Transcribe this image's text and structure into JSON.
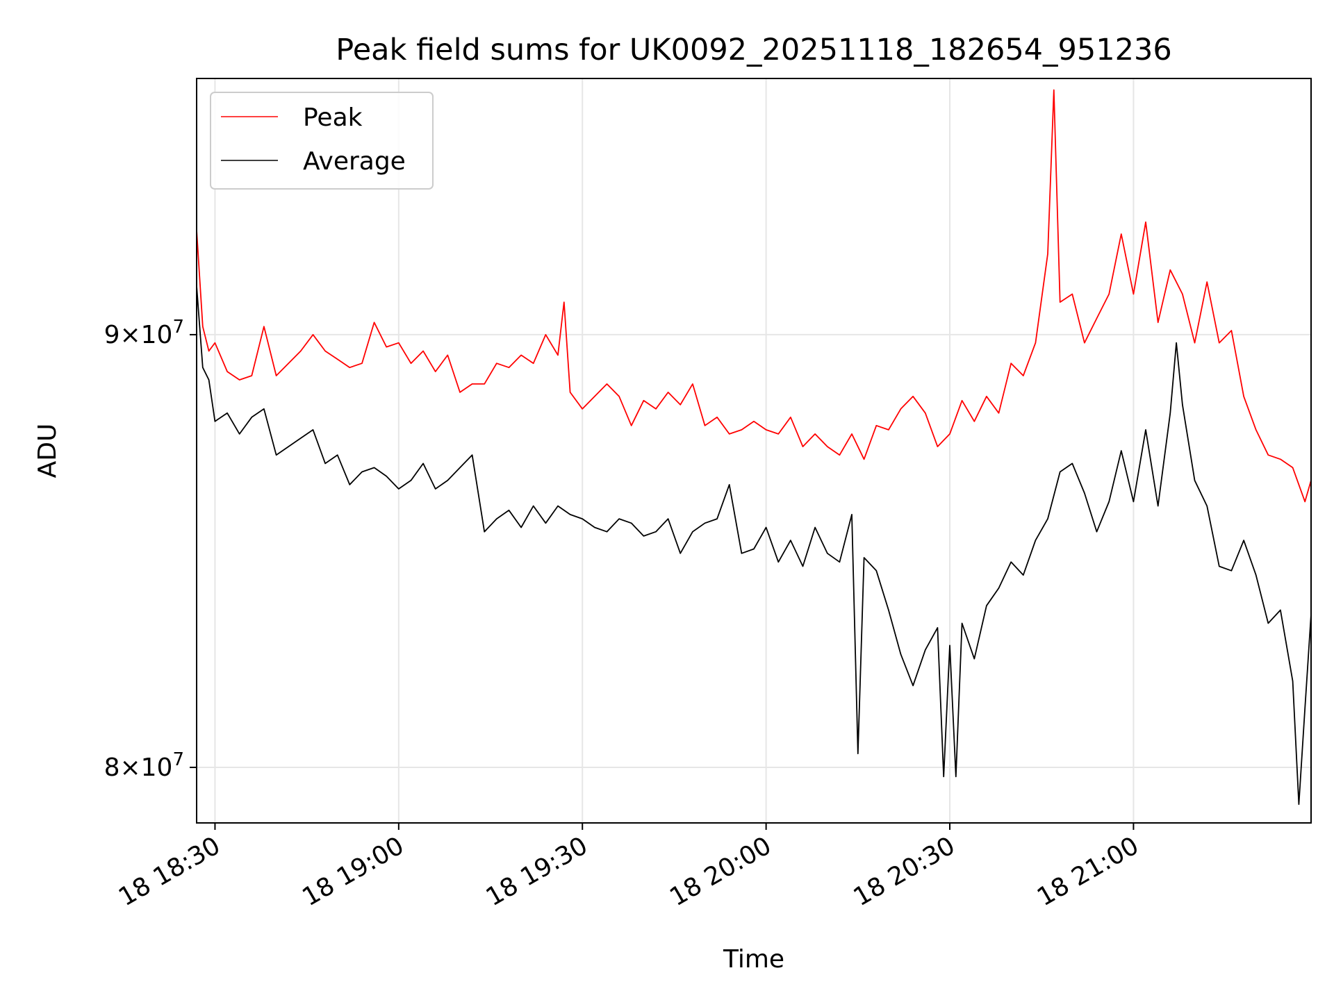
{
  "chart_data": {
    "type": "line",
    "title": "Peak field sums for UK0092_20251118_182654_951236",
    "xlabel": "Time",
    "ylabel": "ADU",
    "x_start": "18 18:27",
    "x_end": "18 21:29",
    "x_unit": "time of day (day 18)",
    "ylim": [
      78800000,
      96500000
    ],
    "y_scale": "log",
    "grid": true,
    "legend_position": "top-left",
    "x_ticks": [
      "18 18:30",
      "18 19:00",
      "18 19:30",
      "18 20:00",
      "18 20:30",
      "18 21:00"
    ],
    "y_ticks": [
      {
        "value": 80000000,
        "mant": "8",
        "exp": "7"
      },
      {
        "value": 90000000,
        "mant": "9",
        "exp": "7"
      }
    ],
    "series": [
      {
        "name": "Peak",
        "color": "#ff0000",
        "points": [
          [
            "18:27",
            92600000
          ],
          [
            "18:28",
            90200000
          ],
          [
            "18:29",
            89600000
          ],
          [
            "18:30",
            89800000
          ],
          [
            "18:32",
            89100000
          ],
          [
            "18:34",
            88900000
          ],
          [
            "18:36",
            89000000
          ],
          [
            "18:38",
            90200000
          ],
          [
            "18:40",
            89000000
          ],
          [
            "18:42",
            89300000
          ],
          [
            "18:44",
            89600000
          ],
          [
            "18:46",
            90000000
          ],
          [
            "18:48",
            89600000
          ],
          [
            "18:50",
            89400000
          ],
          [
            "18:52",
            89200000
          ],
          [
            "18:54",
            89300000
          ],
          [
            "18:56",
            90300000
          ],
          [
            "18:58",
            89700000
          ],
          [
            "19:00",
            89800000
          ],
          [
            "19:02",
            89300000
          ],
          [
            "19:04",
            89600000
          ],
          [
            "19:06",
            89100000
          ],
          [
            "19:08",
            89500000
          ],
          [
            "19:10",
            88600000
          ],
          [
            "19:12",
            88800000
          ],
          [
            "19:14",
            88800000
          ],
          [
            "19:16",
            89300000
          ],
          [
            "19:18",
            89200000
          ],
          [
            "19:20",
            89500000
          ],
          [
            "19:22",
            89300000
          ],
          [
            "19:24",
            90000000
          ],
          [
            "19:26",
            89500000
          ],
          [
            "19:27",
            90800000
          ],
          [
            "19:28",
            88600000
          ],
          [
            "19:30",
            88200000
          ],
          [
            "19:32",
            88500000
          ],
          [
            "19:34",
            88800000
          ],
          [
            "19:36",
            88500000
          ],
          [
            "19:38",
            87800000
          ],
          [
            "19:40",
            88400000
          ],
          [
            "19:42",
            88200000
          ],
          [
            "19:44",
            88600000
          ],
          [
            "19:46",
            88300000
          ],
          [
            "19:48",
            88800000
          ],
          [
            "19:50",
            87800000
          ],
          [
            "19:52",
            88000000
          ],
          [
            "19:54",
            87600000
          ],
          [
            "19:56",
            87700000
          ],
          [
            "19:58",
            87900000
          ],
          [
            "20:00",
            87700000
          ],
          [
            "20:02",
            87600000
          ],
          [
            "20:04",
            88000000
          ],
          [
            "20:06",
            87300000
          ],
          [
            "20:08",
            87600000
          ],
          [
            "20:10",
            87300000
          ],
          [
            "20:12",
            87100000
          ],
          [
            "20:14",
            87600000
          ],
          [
            "20:16",
            87000000
          ],
          [
            "20:18",
            87800000
          ],
          [
            "20:20",
            87700000
          ],
          [
            "20:22",
            88200000
          ],
          [
            "20:24",
            88500000
          ],
          [
            "20:26",
            88100000
          ],
          [
            "20:28",
            87300000
          ],
          [
            "20:30",
            87600000
          ],
          [
            "20:32",
            88400000
          ],
          [
            "20:34",
            87900000
          ],
          [
            "20:36",
            88500000
          ],
          [
            "20:38",
            88100000
          ],
          [
            "20:40",
            89300000
          ],
          [
            "20:42",
            89000000
          ],
          [
            "20:44",
            89800000
          ],
          [
            "20:46",
            92000000
          ],
          [
            "20:47",
            96200000
          ],
          [
            "20:48",
            90800000
          ],
          [
            "20:50",
            91000000
          ],
          [
            "20:52",
            89800000
          ],
          [
            "20:54",
            90400000
          ],
          [
            "20:56",
            91000000
          ],
          [
            "20:58",
            92500000
          ],
          [
            "21:00",
            91000000
          ],
          [
            "21:02",
            92800000
          ],
          [
            "21:04",
            90300000
          ],
          [
            "21:06",
            91600000
          ],
          [
            "21:08",
            91000000
          ],
          [
            "21:10",
            89800000
          ],
          [
            "21:12",
            91300000
          ],
          [
            "21:14",
            89800000
          ],
          [
            "21:16",
            90100000
          ],
          [
            "21:18",
            88500000
          ],
          [
            "21:20",
            87700000
          ],
          [
            "21:22",
            87100000
          ],
          [
            "21:24",
            87000000
          ],
          [
            "21:26",
            86800000
          ],
          [
            "21:28",
            86000000
          ],
          [
            "21:29",
            86500000
          ]
        ]
      },
      {
        "name": "Average",
        "color": "#000000",
        "points": [
          [
            "18:27",
            91200000
          ],
          [
            "18:28",
            89200000
          ],
          [
            "18:29",
            88900000
          ],
          [
            "18:30",
            87900000
          ],
          [
            "18:32",
            88100000
          ],
          [
            "18:34",
            87600000
          ],
          [
            "18:36",
            88000000
          ],
          [
            "18:38",
            88200000
          ],
          [
            "18:40",
            87100000
          ],
          [
            "18:42",
            87300000
          ],
          [
            "18:44",
            87500000
          ],
          [
            "18:46",
            87700000
          ],
          [
            "18:48",
            86900000
          ],
          [
            "18:50",
            87100000
          ],
          [
            "18:52",
            86400000
          ],
          [
            "18:54",
            86700000
          ],
          [
            "18:56",
            86800000
          ],
          [
            "18:58",
            86600000
          ],
          [
            "19:00",
            86300000
          ],
          [
            "19:02",
            86500000
          ],
          [
            "19:04",
            86900000
          ],
          [
            "19:06",
            86300000
          ],
          [
            "19:08",
            86500000
          ],
          [
            "19:10",
            86800000
          ],
          [
            "19:12",
            87100000
          ],
          [
            "19:14",
            85300000
          ],
          [
            "19:16",
            85600000
          ],
          [
            "19:18",
            85800000
          ],
          [
            "19:20",
            85400000
          ],
          [
            "19:22",
            85900000
          ],
          [
            "19:24",
            85500000
          ],
          [
            "19:26",
            85900000
          ],
          [
            "19:28",
            85700000
          ],
          [
            "19:30",
            85600000
          ],
          [
            "19:32",
            85400000
          ],
          [
            "19:34",
            85300000
          ],
          [
            "19:36",
            85600000
          ],
          [
            "19:38",
            85500000
          ],
          [
            "19:40",
            85200000
          ],
          [
            "19:42",
            85300000
          ],
          [
            "19:44",
            85600000
          ],
          [
            "19:46",
            84800000
          ],
          [
            "19:48",
            85300000
          ],
          [
            "19:50",
            85500000
          ],
          [
            "19:52",
            85600000
          ],
          [
            "19:54",
            86400000
          ],
          [
            "19:56",
            84800000
          ],
          [
            "19:58",
            84900000
          ],
          [
            "20:00",
            85400000
          ],
          [
            "20:02",
            84600000
          ],
          [
            "20:04",
            85100000
          ],
          [
            "20:06",
            84500000
          ],
          [
            "20:08",
            85400000
          ],
          [
            "20:10",
            84800000
          ],
          [
            "20:12",
            84600000
          ],
          [
            "20:14",
            85700000
          ],
          [
            "20:15",
            80300000
          ],
          [
            "20:16",
            84700000
          ],
          [
            "20:18",
            84400000
          ],
          [
            "20:20",
            83500000
          ],
          [
            "20:22",
            82500000
          ],
          [
            "20:24",
            81800000
          ],
          [
            "20:26",
            82600000
          ],
          [
            "20:28",
            83100000
          ],
          [
            "20:29",
            79800000
          ],
          [
            "20:30",
            82700000
          ],
          [
            "20:31",
            79800000
          ],
          [
            "20:32",
            83200000
          ],
          [
            "20:34",
            82400000
          ],
          [
            "20:36",
            83600000
          ],
          [
            "20:38",
            84000000
          ],
          [
            "20:40",
            84600000
          ],
          [
            "20:42",
            84300000
          ],
          [
            "20:44",
            85100000
          ],
          [
            "20:46",
            85600000
          ],
          [
            "20:48",
            86700000
          ],
          [
            "20:50",
            86900000
          ],
          [
            "20:52",
            86200000
          ],
          [
            "20:54",
            85300000
          ],
          [
            "20:56",
            86000000
          ],
          [
            "20:58",
            87200000
          ],
          [
            "21:00",
            86000000
          ],
          [
            "21:02",
            87700000
          ],
          [
            "21:04",
            85900000
          ],
          [
            "21:06",
            88100000
          ],
          [
            "21:07",
            89800000
          ],
          [
            "21:08",
            88300000
          ],
          [
            "21:10",
            86500000
          ],
          [
            "21:12",
            85900000
          ],
          [
            "21:14",
            84500000
          ],
          [
            "21:16",
            84400000
          ],
          [
            "21:18",
            85100000
          ],
          [
            "21:20",
            84300000
          ],
          [
            "21:22",
            83200000
          ],
          [
            "21:24",
            83500000
          ],
          [
            "21:26",
            81900000
          ],
          [
            "21:27",
            79200000
          ],
          [
            "21:28",
            81300000
          ],
          [
            "21:29",
            83400000
          ]
        ]
      }
    ]
  }
}
